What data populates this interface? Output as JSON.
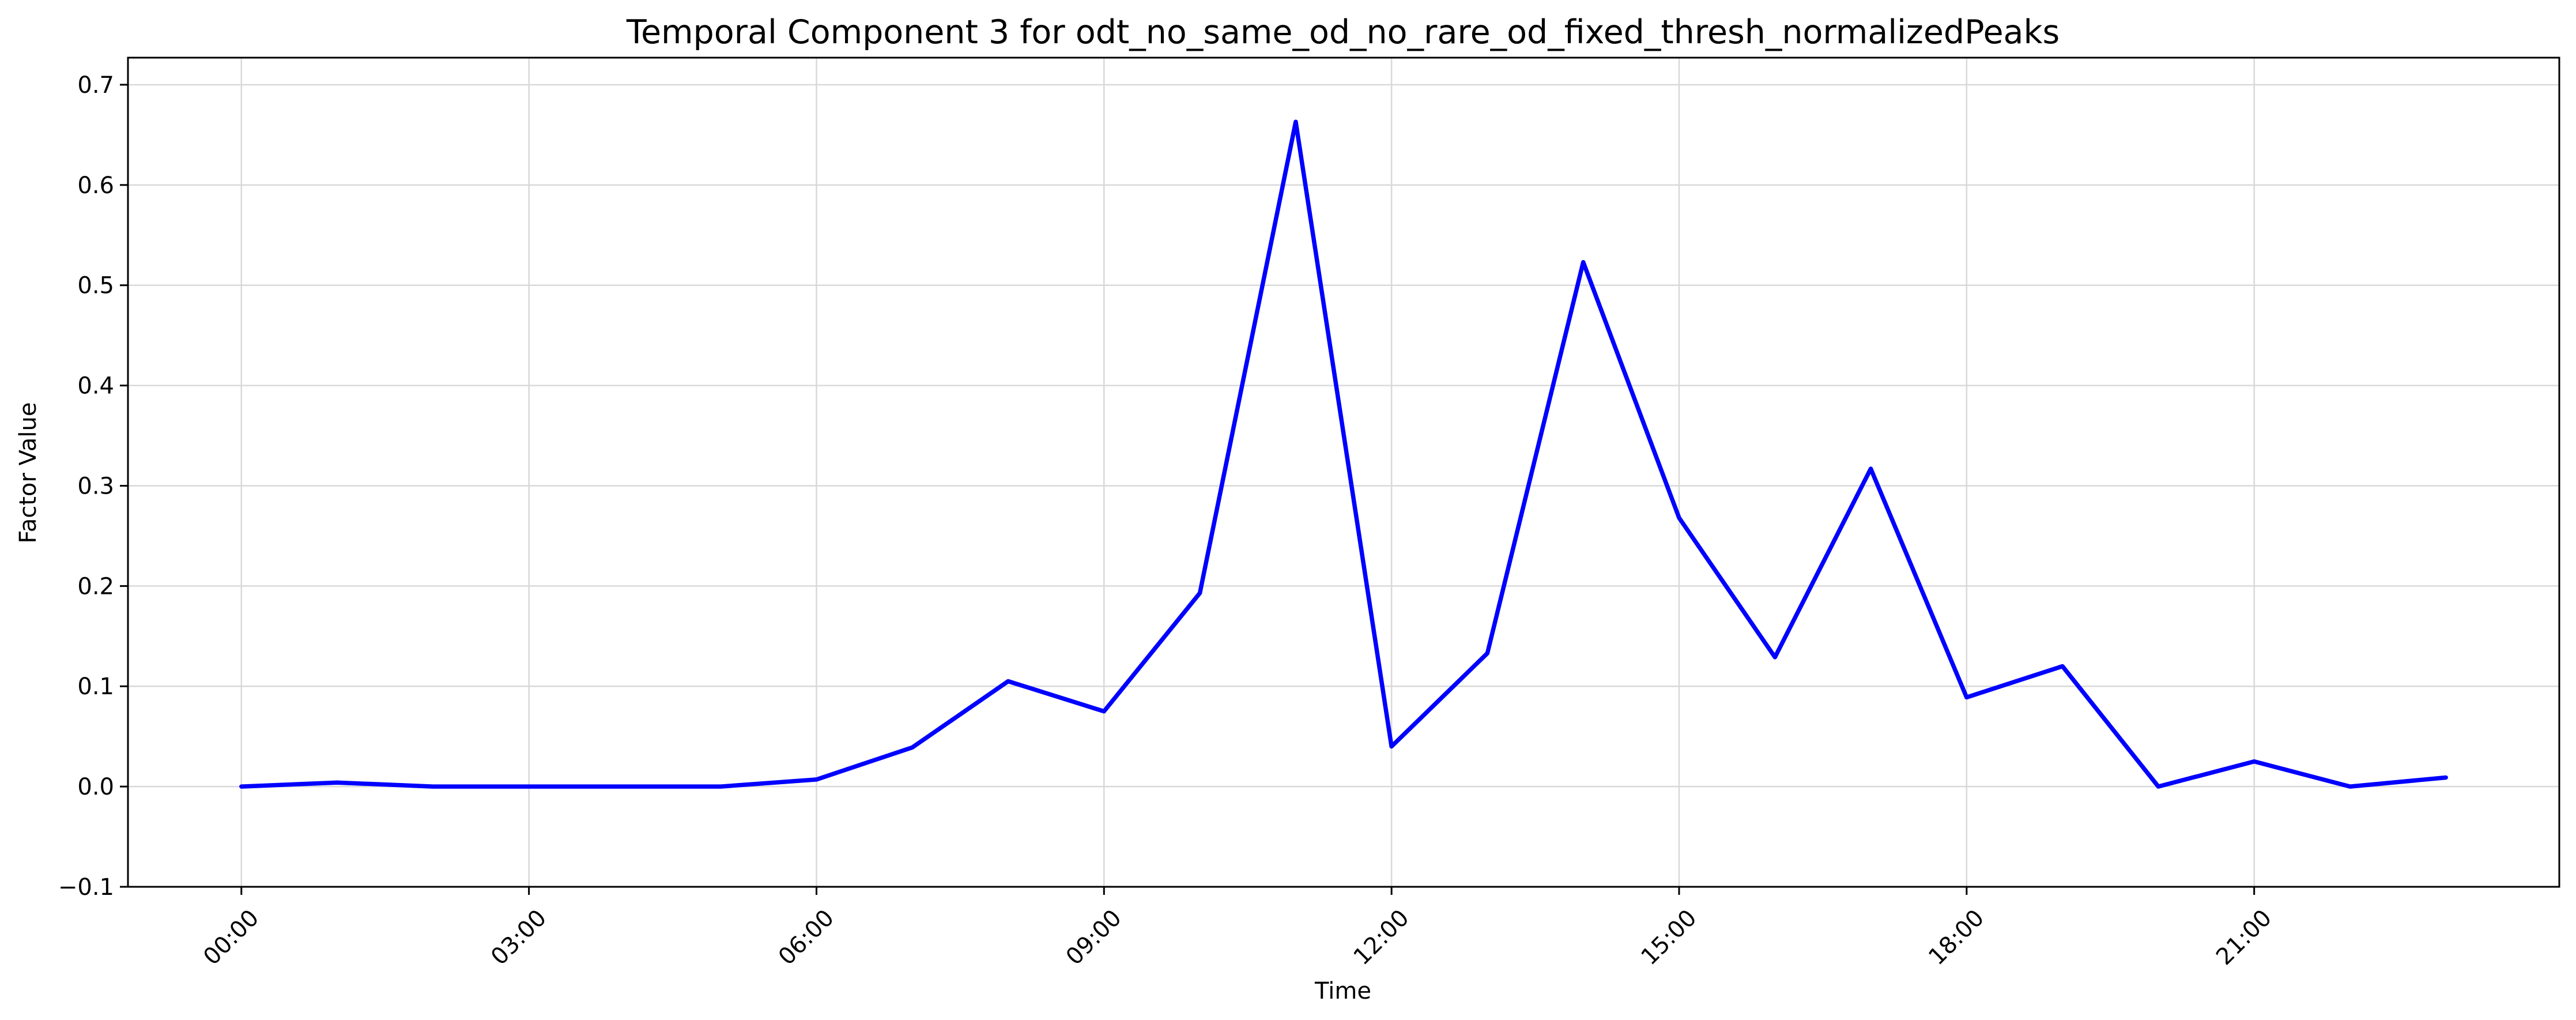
{
  "colors": {
    "series": "#0000ff",
    "grid": "#d9d9d9",
    "background": "#ffffff"
  },
  "chart_data": {
    "type": "line",
    "title": "Temporal Component 3 for odt_no_same_od_no_rare_od_fixed_thresh_normalizedPeaks",
    "xlabel": "Time",
    "ylabel": "Factor Value",
    "x_categories": [
      "00:00",
      "01:00",
      "02:00",
      "03:00",
      "04:00",
      "05:00",
      "06:00",
      "07:00",
      "08:00",
      "09:00",
      "10:00",
      "11:00",
      "12:00",
      "13:00",
      "14:00",
      "15:00",
      "16:00",
      "17:00",
      "18:00",
      "19:00",
      "20:00",
      "21:00",
      "22:00",
      "23:00"
    ],
    "x_tick_labels": [
      "00:00",
      "03:00",
      "06:00",
      "09:00",
      "12:00",
      "15:00",
      "18:00",
      "21:00"
    ],
    "x_tick_rotation_deg": 45,
    "xlim": [
      "-01:11",
      "24:11"
    ],
    "y_ticks": [
      -0.1,
      0.0,
      0.1,
      0.2,
      0.3,
      0.4,
      0.5,
      0.6,
      0.7
    ],
    "y_tick_labels": [
      "−0.1",
      "0.0",
      "0.1",
      "0.2",
      "0.3",
      "0.4",
      "0.5",
      "0.6",
      "0.7"
    ],
    "ylim": [
      -0.1,
      0.727
    ],
    "grid": true,
    "series": [
      {
        "values": [
          0.0,
          0.004,
          0.0,
          0.0,
          0.0,
          0.0,
          0.007,
          0.039,
          0.105,
          0.075,
          0.193,
          0.663,
          0.04,
          0.133,
          0.523,
          0.268,
          0.129,
          0.317,
          0.089,
          0.12,
          0.0,
          0.025,
          0.0,
          0.009
        ]
      }
    ]
  }
}
